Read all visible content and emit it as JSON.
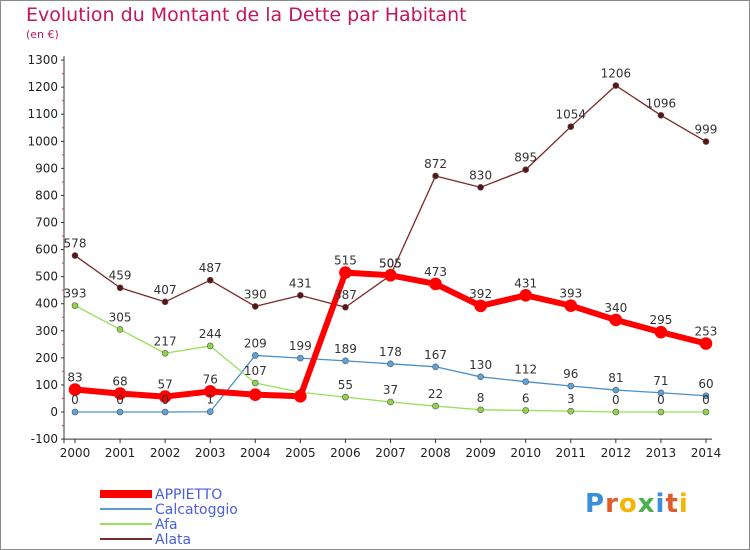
{
  "title": "Evolution du Montant de la Dette par Habitant",
  "subtitle": "(en €)",
  "logo": "Proxiti",
  "chart_data": {
    "type": "line",
    "title": "Evolution du Montant de la Dette par Habitant",
    "subtitle": "(en €)",
    "x": [
      "2000",
      "2001",
      "2002",
      "2003",
      "2004",
      "2005",
      "2006",
      "2007",
      "2008",
      "2009",
      "2010",
      "2011",
      "2012",
      "2013",
      "2014"
    ],
    "ylim": [
      -100,
      1300
    ],
    "yticks": [
      -100,
      0,
      100,
      200,
      300,
      400,
      500,
      600,
      700,
      800,
      900,
      1000,
      1100,
      1200,
      1300
    ],
    "grid": false,
    "legend": "bottom-left",
    "series": [
      {
        "name": "APPIETTO",
        "color": "#ff0000",
        "values": [
          83,
          68,
          57,
          76,
          64,
          58,
          515,
          505,
          473,
          392,
          431,
          393,
          340,
          295,
          253
        ]
      },
      {
        "name": "Calcatoggio",
        "color": "#5b9bd5",
        "values": [
          0,
          0,
          0,
          1,
          209,
          199,
          189,
          178,
          167,
          130,
          112,
          96,
          81,
          71,
          60
        ]
      },
      {
        "name": "Afa",
        "color": "#99e05a",
        "values": [
          393,
          305,
          217,
          244,
          107,
          73,
          55,
          37,
          22,
          8,
          6,
          3,
          0,
          0,
          0
        ]
      },
      {
        "name": "Alata",
        "color": "#6b1a1a",
        "values": [
          578,
          459,
          407,
          487,
          390,
          431,
          387,
          505,
          872,
          830,
          895,
          1054,
          1206,
          1096,
          999
        ]
      }
    ],
    "data_labels": {
      "APPIETTO": [
        "83",
        "68",
        "57",
        "76",
        "",
        "",
        "515",
        "505",
        "473",
        "392",
        "431",
        "393",
        "340",
        "295",
        "253"
      ],
      "Calcatoggio": [
        "0",
        "0",
        "0",
        "1",
        "209",
        "199",
        "189",
        "178",
        "167",
        "130",
        "112",
        "96",
        "81",
        "71",
        "60"
      ],
      "Afa": [
        "393",
        "305",
        "217",
        "244",
        "107",
        "",
        "55",
        "37",
        "22",
        "8",
        "6",
        "3",
        "0",
        "0",
        "0"
      ],
      "Alata": [
        "578",
        "459",
        "407",
        "487",
        "390",
        "431",
        "387",
        "505",
        "872",
        "830",
        "895",
        "1054",
        "1206",
        "1096",
        "999"
      ]
    }
  }
}
